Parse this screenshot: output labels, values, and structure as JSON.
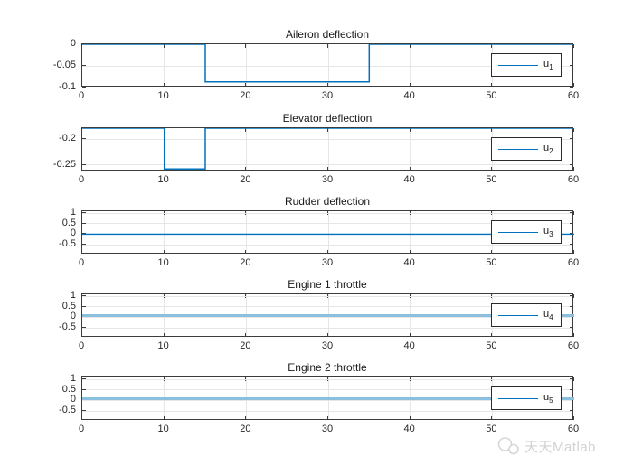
{
  "figure": {
    "background": "#ffffff"
  },
  "colors": {
    "line": "#0072BD",
    "line_light": "#8abfe0",
    "axis": "#3c3c3c",
    "grid": "#e6e6e6",
    "text": "#262626",
    "watermark": "#d2d2d2"
  },
  "watermark": {
    "text": "天天Matlab",
    "icon": "chat-bubbles-icon"
  },
  "chart_data": [
    {
      "type": "line",
      "title": "Aileron deflection",
      "legend_label": "u",
      "legend_sub": "1",
      "legend_position": "right",
      "grid": true,
      "xlim": [
        0,
        60
      ],
      "xticks": [
        0,
        10,
        20,
        30,
        40,
        50,
        60
      ],
      "xtick_labels": [
        "0",
        "10",
        "20",
        "30",
        "40",
        "50",
        "60"
      ],
      "ylim": [
        -0.1,
        0
      ],
      "yticks": [
        0,
        -0.05,
        -0.1
      ],
      "ytick_labels": [
        "0",
        "-0.05",
        "-0.1"
      ],
      "series": [
        {
          "name": "u1",
          "color_key": "line",
          "width": 1.5,
          "points": [
            [
              0,
              0
            ],
            [
              15,
              0
            ],
            [
              15,
              -0.087
            ],
            [
              35,
              -0.087
            ],
            [
              35,
              0
            ],
            [
              60,
              0
            ]
          ]
        }
      ]
    },
    {
      "type": "line",
      "title": "Elevator deflection",
      "legend_label": "u",
      "legend_sub": "2",
      "legend_position": "right",
      "grid": true,
      "xlim": [
        0,
        60
      ],
      "xticks": [
        0,
        10,
        20,
        30,
        40,
        50,
        60
      ],
      "xtick_labels": [
        "0",
        "10",
        "20",
        "30",
        "40",
        "50",
        "60"
      ],
      "ylim": [
        -0.263,
        -0.178
      ],
      "yticks": [
        -0.2,
        -0.25
      ],
      "ytick_labels": [
        "-0.2",
        "-0.25"
      ],
      "series": [
        {
          "name": "u2",
          "color_key": "line",
          "width": 1.5,
          "points": [
            [
              0,
              -0.178
            ],
            [
              10,
              -0.178
            ],
            [
              10,
              -0.258
            ],
            [
              15,
              -0.258
            ],
            [
              15,
              -0.178
            ],
            [
              60,
              -0.178
            ]
          ]
        }
      ]
    },
    {
      "type": "line",
      "title": "Rudder deflection",
      "legend_label": "u",
      "legend_sub": "3",
      "legend_position": "right",
      "grid": true,
      "xlim": [
        0,
        60
      ],
      "xticks": [
        0,
        10,
        20,
        30,
        40,
        50,
        60
      ],
      "xtick_labels": [
        "0",
        "10",
        "20",
        "30",
        "40",
        "50",
        "60"
      ],
      "ylim": [
        -0.97,
        1.09
      ],
      "yticks": [
        1,
        0.5,
        0,
        -0.5
      ],
      "ytick_labels": [
        "1",
        "0.5",
        "0",
        "-0.5"
      ],
      "series": [
        {
          "name": "u3",
          "color_key": "line",
          "width": 1.4,
          "points": [
            [
              0,
              0
            ],
            [
              60,
              0
            ]
          ]
        }
      ]
    },
    {
      "type": "line",
      "title": "Engine 1 throttle",
      "legend_label": "u",
      "legend_sub": "4",
      "legend_position": "right",
      "grid": true,
      "xlim": [
        0,
        60
      ],
      "xticks": [
        0,
        10,
        20,
        30,
        40,
        50,
        60
      ],
      "xtick_labels": [
        "0",
        "10",
        "20",
        "30",
        "40",
        "50",
        "60"
      ],
      "ylim": [
        -0.97,
        1.09
      ],
      "yticks": [
        1,
        0.5,
        0,
        -0.5
      ],
      "ytick_labels": [
        "1",
        "0.5",
        "0",
        "-0.5"
      ],
      "series": [
        {
          "name": "u4",
          "color_key": "line_light",
          "width": 3,
          "points": [
            [
              0,
              0.08
            ],
            [
              60,
              0.08
            ]
          ]
        }
      ]
    },
    {
      "type": "line",
      "title": "Engine 2 throttle",
      "legend_label": "u",
      "legend_sub": "5",
      "legend_position": "right",
      "grid": true,
      "xlim": [
        0,
        60
      ],
      "xticks": [
        0,
        10,
        20,
        30,
        40,
        50,
        60
      ],
      "xtick_labels": [
        "0",
        "10",
        "20",
        "30",
        "40",
        "50",
        "60"
      ],
      "ylim": [
        -0.97,
        1.09
      ],
      "yticks": [
        1,
        0.5,
        0,
        -0.5
      ],
      "ytick_labels": [
        "1",
        "0.5",
        "0",
        "-0.5"
      ],
      "series": [
        {
          "name": "u5",
          "color_key": "line_light",
          "width": 3,
          "points": [
            [
              0,
              0.08
            ],
            [
              60,
              0.08
            ]
          ]
        }
      ]
    }
  ]
}
